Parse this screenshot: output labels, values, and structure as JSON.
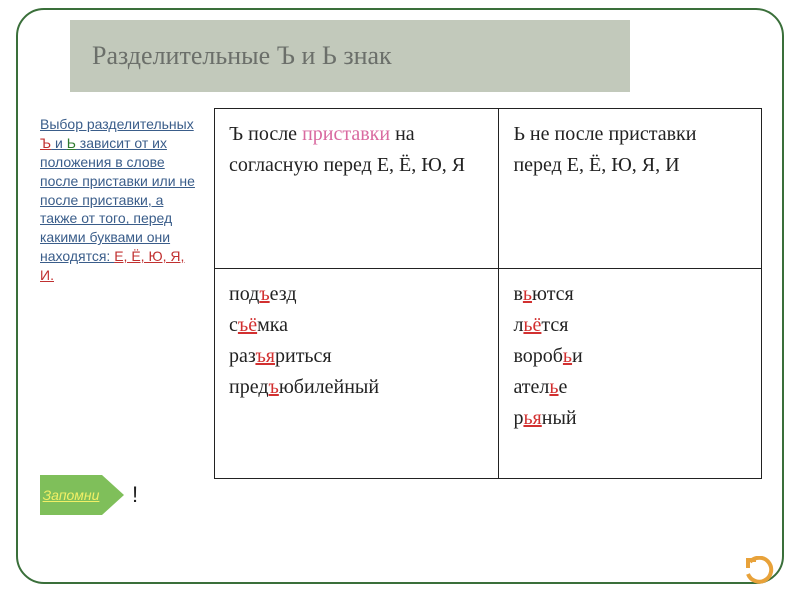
{
  "title": "Разделительные Ъ и Ь знак",
  "sidenote": {
    "pre1": "Выбор разделительных ",
    "hard": "Ъ",
    "mid1": " и ",
    "soft": "Ь",
    "rest": " зависит от их положения в слове после приставки или не после приставки, а также от того, перед какими буквами они находятся: ",
    "letters": "Е, Ё, Ю, Я, И."
  },
  "arrow_label": "Запомни",
  "exclam": "!",
  "table": {
    "r1c1": {
      "p1": "Ъ   после ",
      "pink": "приставки",
      "p2": " на согласную перед Е, Ё, Ю, Я"
    },
    "r1c2": "Ь  не после приставки перед Е, Ё, Ю, Я, И",
    "r2c1": [
      {
        "pre": "под",
        "hl": "ъ",
        "post": "езд"
      },
      {
        "pre": "с",
        "hl": "ъё",
        "post": "мка"
      },
      {
        "pre": "раз",
        "hl": "ъя",
        "post": "риться"
      },
      {
        "pre": "пред",
        "hl": "ъ",
        "post": "юбилейный"
      }
    ],
    "r2c2": [
      {
        "pre": "в",
        "hl": "ь",
        "post": "ются"
      },
      {
        "pre": "л",
        "hl": "ьё",
        "post": "тся"
      },
      {
        "pre": "вороб",
        "hl": "ь",
        "post": "и"
      },
      {
        "pre": "ател",
        "hl": "ь",
        "post": "е"
      },
      {
        "pre": "р",
        "hl": "ья",
        "post": "ный"
      }
    ]
  },
  "colors": {
    "frame_border": "#3a6f3a",
    "title_bg": "#c2c9bb",
    "title_fg": "#6b6f6a",
    "link_blue": "#3a5d8a",
    "red": "#c03030",
    "green": "#2e7a2e",
    "arrow_bg": "#7fbf5a",
    "arrow_text": "#f2f066",
    "pink": "#d96aa0",
    "hl_red": "#d23030",
    "return_orange": "#e8a23a"
  }
}
